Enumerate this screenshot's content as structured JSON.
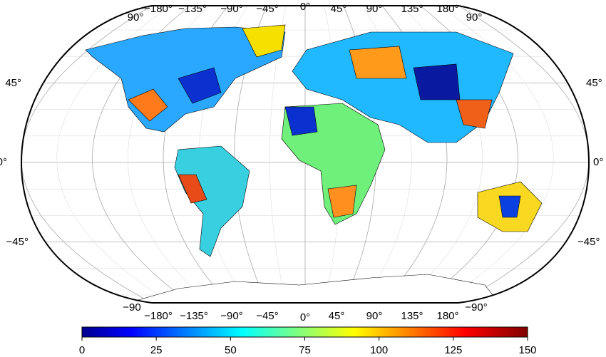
{
  "map": {
    "top_labels": [
      "90°",
      "−180°",
      "−135°",
      "−90°",
      "−45°",
      "0°",
      "45°",
      "90°",
      "135°",
      "180°",
      "90°"
    ],
    "bottom_labels": [
      "−90",
      "−180°",
      "−135°",
      "−90°",
      "−45°",
      "0°",
      "45°",
      "90°",
      "135°",
      "180°",
      "−90°"
    ],
    "left_labels": [
      "45°",
      "0°",
      "−45°"
    ],
    "right_labels": [
      "45°",
      "0°",
      "−45°"
    ],
    "colorbar": {
      "lim": [
        0,
        150
      ],
      "ticks": [
        0,
        25,
        50,
        75,
        100,
        125,
        150
      ]
    }
  }
}
